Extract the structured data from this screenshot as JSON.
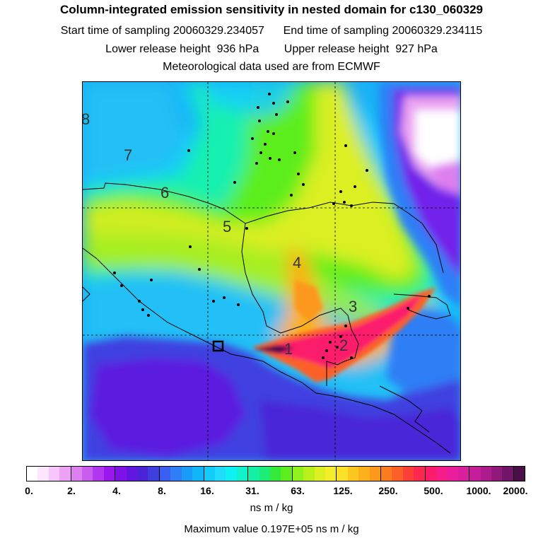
{
  "title": "Column-integrated emission sensitivity in nested domain for c130_060329",
  "start_label": "Start time of sampling",
  "start_value": "20060329.234057",
  "end_label": "End time of sampling",
  "end_value": "20060329.234115",
  "lower_label": "Lower release height",
  "lower_value": "936 hPa",
  "upper_label": "Upper release height",
  "upper_value": "927 hPa",
  "met_text": "Meteorological data used are from ECMWF",
  "map": {
    "time_labels": [
      "1",
      "2",
      "3",
      "4",
      "5",
      "6",
      "7",
      "8"
    ]
  },
  "colorbar": {
    "ticks": [
      "0.",
      "2.",
      "4.",
      "8.",
      "16.",
      "31.",
      "63.",
      "125.",
      "250.",
      "500.",
      "1000.",
      "2000."
    ],
    "units": "ns m / kg",
    "colors": [
      "#ffffff",
      "#fde6ff",
      "#f7c6fa",
      "#eca2f3",
      "#de7ff0",
      "#c95df0",
      "#b136f0",
      "#9a18ee",
      "#7e12e8",
      "#6316e0",
      "#4c22d6",
      "#3f3fe0",
      "#3a5ef0",
      "#2f7ef6",
      "#1a9cf6",
      "#14b6fa",
      "#14ccfc",
      "#20ddfc",
      "#0ff0f0",
      "#11f2cb",
      "#14f0a3",
      "#1ced76",
      "#33ea3c",
      "#5cee1c",
      "#8ff21c",
      "#b8f01c",
      "#dcef21",
      "#f4ee2a",
      "#fce12a",
      "#fcc820",
      "#fcb019",
      "#fc981a",
      "#fc7c20",
      "#fc6028",
      "#fc4038",
      "#fc2850",
      "#fc1c6c",
      "#f51e88",
      "#ea1e9c",
      "#d81f9c",
      "#c41e9a",
      "#ac1c8c",
      "#90197a",
      "#721568",
      "#4c0e48"
    ]
  },
  "max_label": "Maximum value",
  "max_value": "0.197E+05 ns m / kg"
}
